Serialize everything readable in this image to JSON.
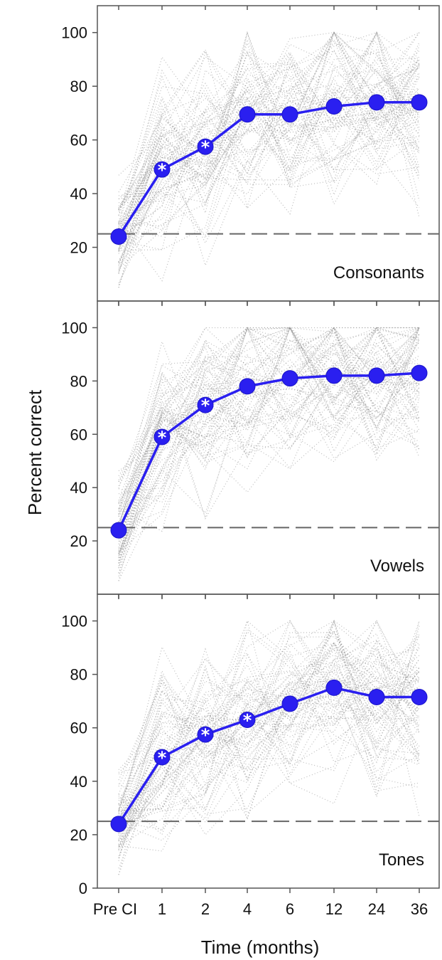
{
  "figure": {
    "ylabel": "Percent correct",
    "xlabel": "Time (months)"
  },
  "chart_data": [
    {
      "type": "line",
      "panel_label": "Consonants",
      "categories": [
        "Pre CI",
        "1",
        "2",
        "4",
        "6",
        "12",
        "24",
        "36"
      ],
      "values": [
        24,
        49,
        57.5,
        69.5,
        69.5,
        72.5,
        74,
        74
      ],
      "significant": [
        false,
        true,
        true,
        false,
        false,
        false,
        false,
        false
      ],
      "ylim": [
        0,
        110
      ],
      "yticks": [
        20,
        40,
        60,
        80,
        100
      ],
      "chance_level": 25,
      "series_color": "#2a1ff0",
      "individual_color": "#888888"
    },
    {
      "type": "line",
      "panel_label": "Vowels",
      "categories": [
        "Pre CI",
        "1",
        "2",
        "4",
        "6",
        "12",
        "24",
        "36"
      ],
      "values": [
        24,
        59,
        71,
        78,
        81,
        82,
        82,
        83
      ],
      "significant": [
        false,
        true,
        true,
        false,
        false,
        false,
        false,
        false
      ],
      "ylim": [
        0,
        110
      ],
      "yticks": [
        20,
        40,
        60,
        80,
        100
      ],
      "chance_level": 25,
      "series_color": "#2a1ff0",
      "individual_color": "#888888"
    },
    {
      "type": "line",
      "panel_label": "Tones",
      "categories": [
        "Pre CI",
        "1",
        "2",
        "4",
        "6",
        "12",
        "24",
        "36"
      ],
      "values": [
        24,
        49,
        57.5,
        63,
        69,
        75,
        71.5,
        71.5
      ],
      "significant": [
        false,
        true,
        true,
        true,
        false,
        false,
        false,
        false
      ],
      "ylim": [
        0,
        110
      ],
      "yticks": [
        0,
        20,
        40,
        60,
        80,
        100
      ],
      "chance_level": 25,
      "series_color": "#2a1ff0",
      "individual_color": "#888888"
    }
  ]
}
